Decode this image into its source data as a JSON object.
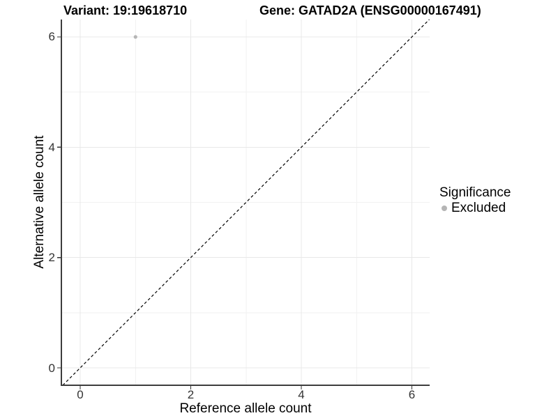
{
  "chart_data": {
    "type": "scatter",
    "titles": {
      "variant": "Variant: 19:19618710",
      "gene": "Gene: GATAD2A (ENSG00000167491)"
    },
    "xlabel": "Reference allele count",
    "ylabel": "Alternative allele count",
    "xlim": [
      0,
      6
    ],
    "ylim": [
      0,
      6
    ],
    "x_ticks": [
      0,
      2,
      4,
      6
    ],
    "y_ticks": [
      0,
      2,
      4,
      6
    ],
    "x_minor_ticks": [
      1,
      3,
      5
    ],
    "y_minor_ticks": [
      1,
      3,
      5
    ],
    "grid": true,
    "points": [
      {
        "x": 1,
        "y": 6,
        "series": "Excluded",
        "color": "#b5b5b5"
      }
    ],
    "reference_line": {
      "type": "identity",
      "equation": "y = x",
      "style": "dashed",
      "color": "#000000"
    },
    "legend": {
      "title": "Significance",
      "position": "right",
      "entries": [
        {
          "label": "Excluded",
          "color": "#b5b5b5",
          "marker": "circle"
        }
      ]
    },
    "style_colors": {
      "axis_line": "#3d3d3d",
      "tick_mark": "#333333",
      "tick_label": "#333333",
      "grid_major": "#e8e8e8",
      "grid_minor": "#f2f2f2",
      "background": "#ffffff"
    }
  }
}
